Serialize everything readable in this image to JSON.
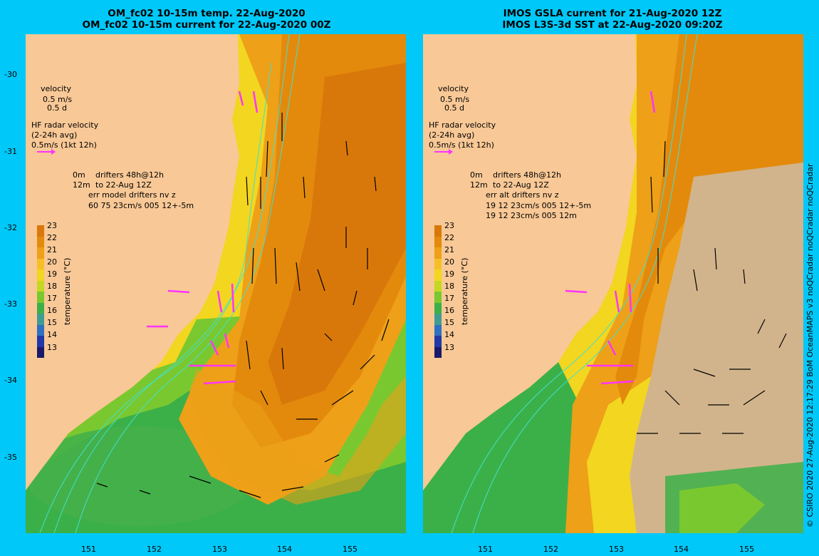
{
  "left_panel": {
    "title_line1": "OM_fc02 10-15m temp. 22-Aug-2020",
    "title_line2": "OM_fc02 10-15m current for 22-Aug-2020 00Z",
    "legend": {
      "velocity": "velocity",
      "vel_scale": "0.5 m/s",
      "vel_days": "0.5 d",
      "hf_title": "HF radar velocity",
      "hf_avg": "(2-24h avg)",
      "hf_scale": "0.5m/s (1kt 12h)",
      "drifter_0m": "0m",
      "drifter_label1": "drifters 48h@12h",
      "drifter_12m": "12m",
      "drifter_label2": "to 22-Aug 12Z",
      "err_line1": "err model drifters nv z",
      "err_line2": "60 75 23cm/s 005 12+-5m",
      "err_line3": ""
    }
  },
  "right_panel": {
    "title_line1": "IMOS GSLA current for 21-Aug-2020 12Z",
    "title_line2": "IMOS L3S-3d SST at 22-Aug-2020 09:20Z",
    "legend": {
      "velocity": "velocity",
      "vel_scale": "0.5 m/s",
      "vel_days": "0.5 d",
      "hf_title": "HF radar velocity",
      "hf_avg": "(2-24h avg)",
      "hf_scale": "0.5m/s (1kt 12h)",
      "drifter_0m": "0m",
      "drifter_label1": "drifters 48h@12h",
      "drifter_12m": "12m",
      "drifter_label2": "to 22-Aug 12Z",
      "err_line1": "err alt drifters nv z",
      "err_line2": "19 12 23cm/s 005 12+-5m",
      "err_line3": "19 12 23cm/s 005 12m"
    }
  },
  "colorbar": {
    "label": "temperature (°C)",
    "ticks": [
      "23",
      "22",
      "21",
      "20",
      "19",
      "18",
      "17",
      "16",
      "15",
      "14",
      "13"
    ],
    "colors": [
      "#d9780a",
      "#e38a0c",
      "#eea018",
      "#f6bf28",
      "#f2d620",
      "#c4d822",
      "#7ac830",
      "#3cb048",
      "#3f9c93",
      "#2e70c2",
      "#2038a8",
      "#1a1a6a"
    ]
  },
  "map_axes": {
    "lat_ticks": [
      "-30",
      "-31",
      "-32",
      "-33",
      "-34",
      "-35"
    ],
    "lon_ticks": [
      "151",
      "152",
      "153",
      "154",
      "155"
    ]
  },
  "credit": "© CSIRO 2020   27-Aug-2020 12:17:29 BoM OceanMAPS v3 noQCradar noQCradar noQCradar",
  "colors": {
    "land": "#f8c896",
    "frame": "#00c8f8",
    "drifter": "#ff33ff",
    "contour": "#40e0d0",
    "nodata": "#d2b48c"
  }
}
